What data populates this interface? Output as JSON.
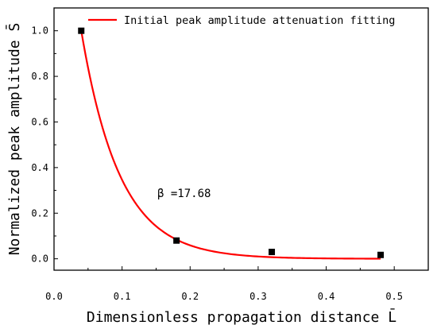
{
  "chart_data": {
    "type": "scatter",
    "xlabel": "Dimensionless propagation distance L̄",
    "ylabel": "Normalized peak amplitude S̄",
    "xlim": [
      0.0,
      0.55
    ],
    "ylim": [
      -0.05,
      1.1
    ],
    "x_ticks": [
      "0.0",
      "0.1",
      "0.2",
      "0.3",
      "0.4",
      "0.5"
    ],
    "x_tick_values": [
      0.0,
      0.1,
      0.2,
      0.3,
      0.4,
      0.5
    ],
    "y_ticks": [
      "0.0",
      "0.2",
      "0.4",
      "0.6",
      "0.8",
      "1.0"
    ],
    "y_tick_values": [
      0.0,
      0.2,
      0.4,
      0.6,
      0.8,
      1.0
    ],
    "grid": false,
    "legend_position": "top-right",
    "series": [
      {
        "kind": "points",
        "x": [
          0.04,
          0.18,
          0.32,
          0.48
        ],
        "y": [
          1.0,
          0.08,
          0.03,
          0.017
        ],
        "color": "#000000",
        "marker": "square"
      },
      {
        "kind": "fit",
        "name": "Initial peak amplitude attenuation fitting",
        "color": "#ff0000",
        "equation": "y = exp(-beta * (x - x0))",
        "beta": 17.68,
        "x0": 0.04,
        "x_range": [
          0.04,
          0.48
        ]
      }
    ],
    "annotation": "β =17.68"
  }
}
